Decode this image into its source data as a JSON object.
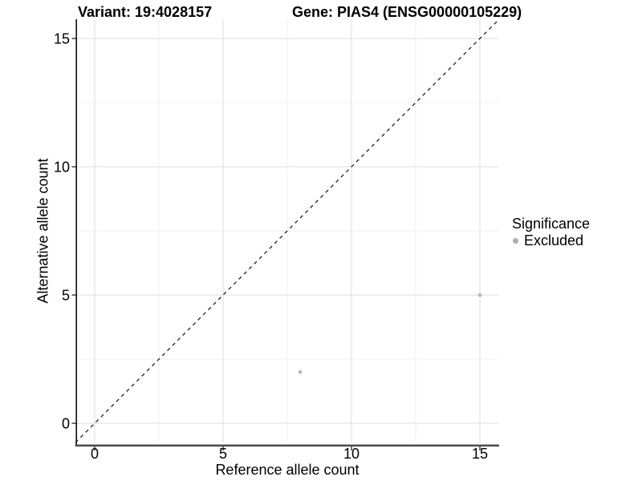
{
  "header": {
    "title_variant": "Variant: 19:4028157",
    "title_gene": "Gene: PIAS4 (ENSG00000105229)"
  },
  "chart_data": {
    "type": "scatter",
    "title": "Variant: 19:4028157 — Gene: PIAS4 (ENSG00000105229)",
    "xlabel": "Reference allele count",
    "ylabel": "Alternative allele count",
    "xlim": [
      -0.75,
      15.75
    ],
    "ylim": [
      -0.75,
      15.75
    ],
    "x_ticks": [
      0,
      5,
      10,
      15
    ],
    "y_ticks": [
      0,
      5,
      10,
      15
    ],
    "x_minor_gridlines": [
      2.5,
      7.5,
      12.5
    ],
    "y_minor_gridlines": [
      2.5,
      7.5,
      12.5
    ],
    "grid": "major and minor, light gray, white background",
    "identity_line": {
      "slope": 1,
      "intercept": 0,
      "style": "dashed",
      "color": "#1f1f1f"
    },
    "series": [
      {
        "name": "Excluded",
        "color": "#b9b9b9",
        "points": [
          [
            8,
            2
          ],
          [
            15,
            5
          ]
        ],
        "point_radius": 2.4
      }
    ],
    "legend": {
      "title": "Significance",
      "position": "right-center",
      "items": [
        {
          "label": "Excluded",
          "color": "#b0b0b0"
        }
      ]
    },
    "colors": {
      "grid_major": "#e3e3e3",
      "grid_minor": "#efefef",
      "axis_line_left": "#1a1a1a",
      "axis_line_bottom": "#4d4d4d",
      "tick_mark": "#333333",
      "tick_label": "#000000",
      "background": "#ffffff"
    }
  }
}
